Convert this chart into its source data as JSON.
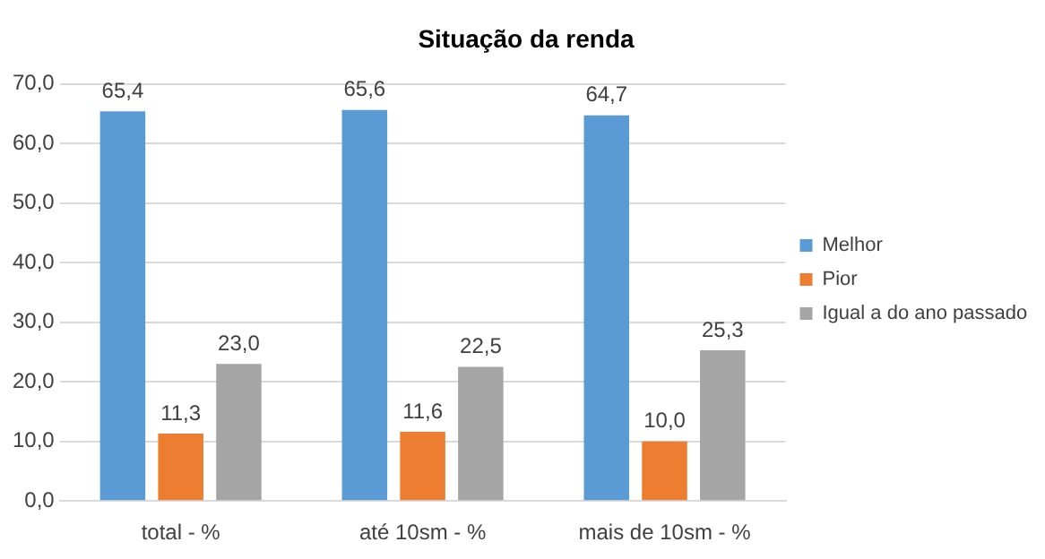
{
  "chart_data": {
    "type": "bar",
    "title": "Situação da renda",
    "categories": [
      "total - %",
      "até 10sm - %",
      "mais de 10sm - %"
    ],
    "series": [
      {
        "name": "Melhor",
        "color": "#5b9bd5",
        "values": [
          65.4,
          65.6,
          64.7
        ],
        "value_labels": [
          "65,4",
          "65,6",
          "64,7"
        ]
      },
      {
        "name": "Pior",
        "color": "#ed7d31",
        "values": [
          11.3,
          11.6,
          10.0
        ],
        "value_labels": [
          "11,3",
          "11,6",
          "10,0"
        ]
      },
      {
        "name": "Igual a do ano passado",
        "color": "#a5a5a5",
        "values": [
          23.0,
          22.5,
          25.3
        ],
        "value_labels": [
          "23,0",
          "22,5",
          "25,3"
        ]
      }
    ],
    "ylim": [
      0,
      70
    ],
    "yticks": [
      {
        "value": 0,
        "label": "0,0"
      },
      {
        "value": 10,
        "label": "10,0"
      },
      {
        "value": 20,
        "label": "20,0"
      },
      {
        "value": 30,
        "label": "30,0"
      },
      {
        "value": 40,
        "label": "40,0"
      },
      {
        "value": 50,
        "label": "50,0"
      },
      {
        "value": 60,
        "label": "60,0"
      },
      {
        "value": 70,
        "label": "70,0"
      }
    ],
    "grid": "y",
    "legend": "right"
  }
}
